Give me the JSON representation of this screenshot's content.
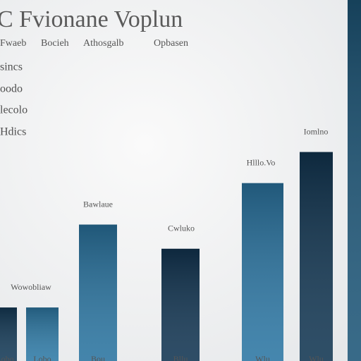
{
  "chart_data": {
    "type": "bar",
    "title": "C Fvionane Voplun",
    "subtitle": [
      "Fwaeb",
      "Bocieh",
      "Athosgalb",
      "Opbasen"
    ],
    "legend_items": [
      "sincs",
      "oodo",
      "lecolo",
      "Hdics"
    ],
    "categories": [
      "Lobo",
      "Lobo",
      "Bou",
      "Bllu",
      "Wlu",
      "Wlu",
      null
    ],
    "values": [
      11,
      11,
      35,
      28,
      47,
      56,
      100
    ],
    "bar_labels": [
      "Wowobliaw",
      null,
      "Bawlaue",
      "Cwluko",
      "Hlllo.Vo",
      "Iomlno",
      null
    ],
    "colors": [
      "#143a57",
      "#2e7aa6",
      "#2a74a0",
      "#123552",
      "#2c76a3",
      "#123652",
      "#1d5678"
    ]
  }
}
